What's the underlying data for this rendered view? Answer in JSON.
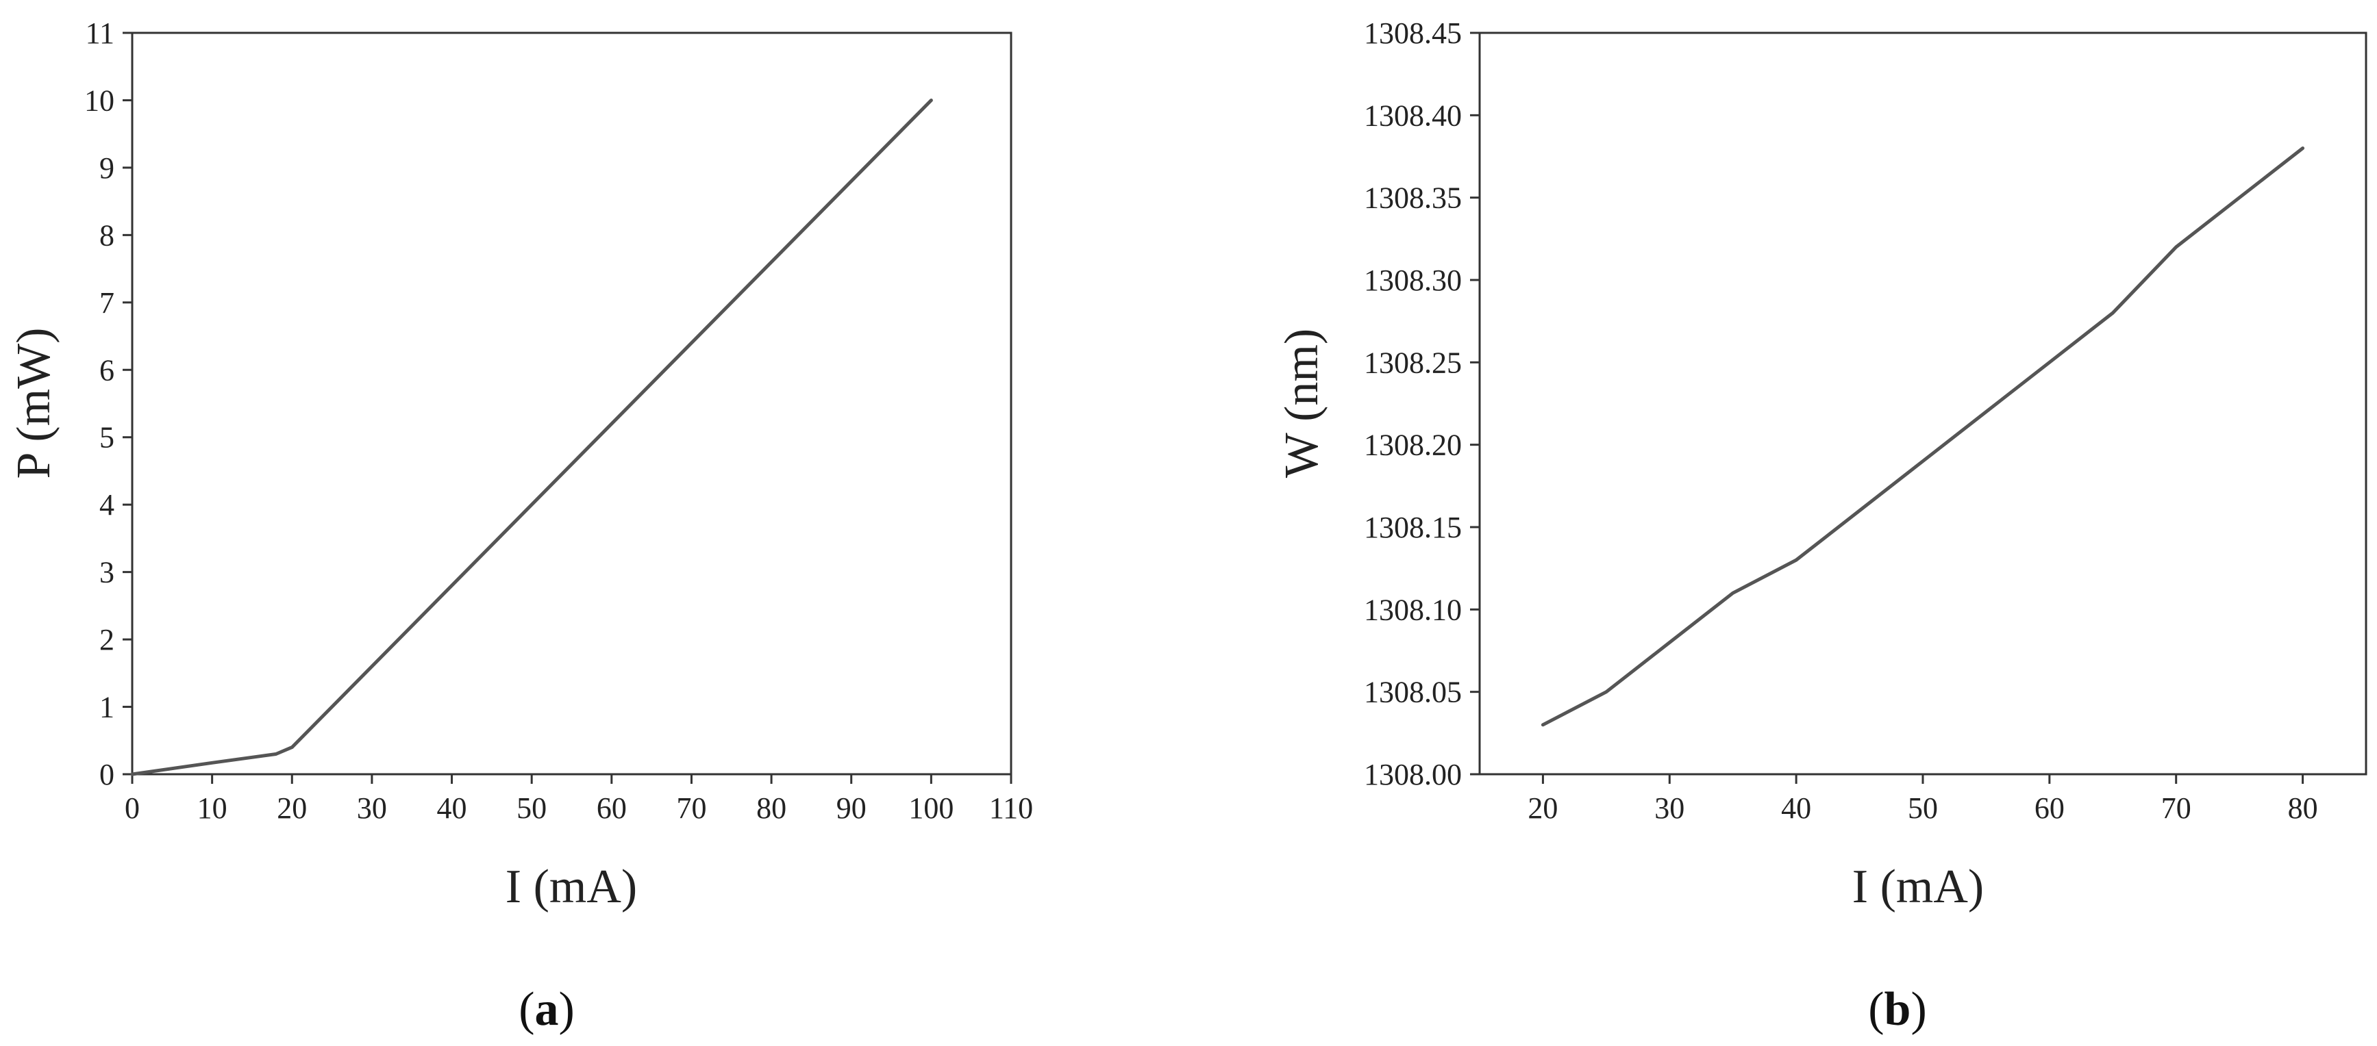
{
  "chart_data": [
    {
      "type": "line",
      "caption": "a",
      "xlabel": "I (mA)",
      "ylabel": "P (mW)",
      "xlim": [
        0,
        110
      ],
      "ylim": [
        0,
        11
      ],
      "xticks": [
        0,
        10,
        20,
        30,
        40,
        50,
        60,
        70,
        80,
        90,
        100,
        110
      ],
      "yticks": [
        0,
        1,
        2,
        3,
        4,
        5,
        6,
        7,
        8,
        9,
        10,
        11
      ],
      "xtick_labels": [
        "0",
        "10",
        "20",
        "30",
        "40",
        "50",
        "60",
        "70",
        "80",
        "90",
        "100",
        "110"
      ],
      "ytick_labels": [
        "0",
        "1",
        "2",
        "3",
        "4",
        "5",
        "6",
        "7",
        "8",
        "9",
        "10",
        "11"
      ],
      "grid": false,
      "legend": false,
      "line_color": "#555555",
      "series": [
        {
          "x": [
            0,
            10,
            18,
            20,
            100
          ],
          "y": [
            0,
            0.17,
            0.3,
            0.4,
            10.0
          ]
        }
      ]
    },
    {
      "type": "line",
      "caption": "b",
      "xlabel": "I (mA)",
      "ylabel": "W (nm)",
      "xlim": [
        15,
        85
      ],
      "ylim": [
        1308.0,
        1308.45
      ],
      "xticks": [
        20,
        30,
        40,
        50,
        60,
        70,
        80
      ],
      "yticks": [
        1308.0,
        1308.05,
        1308.1,
        1308.15,
        1308.2,
        1308.25,
        1308.3,
        1308.35,
        1308.4,
        1308.45
      ],
      "xtick_labels": [
        "20",
        "30",
        "40",
        "50",
        "60",
        "70",
        "80"
      ],
      "ytick_labels": [
        "1308.00",
        "1308.05",
        "1308.10",
        "1308.15",
        "1308.20",
        "1308.25",
        "1308.30",
        "1308.35",
        "1308.40",
        "1308.45"
      ],
      "grid": false,
      "legend": false,
      "line_color": "#555555",
      "series": [
        {
          "x": [
            20,
            25,
            30,
            35,
            40,
            45,
            50,
            55,
            60,
            65,
            70,
            75,
            80
          ],
          "y": [
            1308.03,
            1308.05,
            1308.08,
            1308.11,
            1308.13,
            1308.16,
            1308.19,
            1308.22,
            1308.25,
            1308.28,
            1308.32,
            1308.35,
            1308.38
          ]
        }
      ]
    }
  ]
}
